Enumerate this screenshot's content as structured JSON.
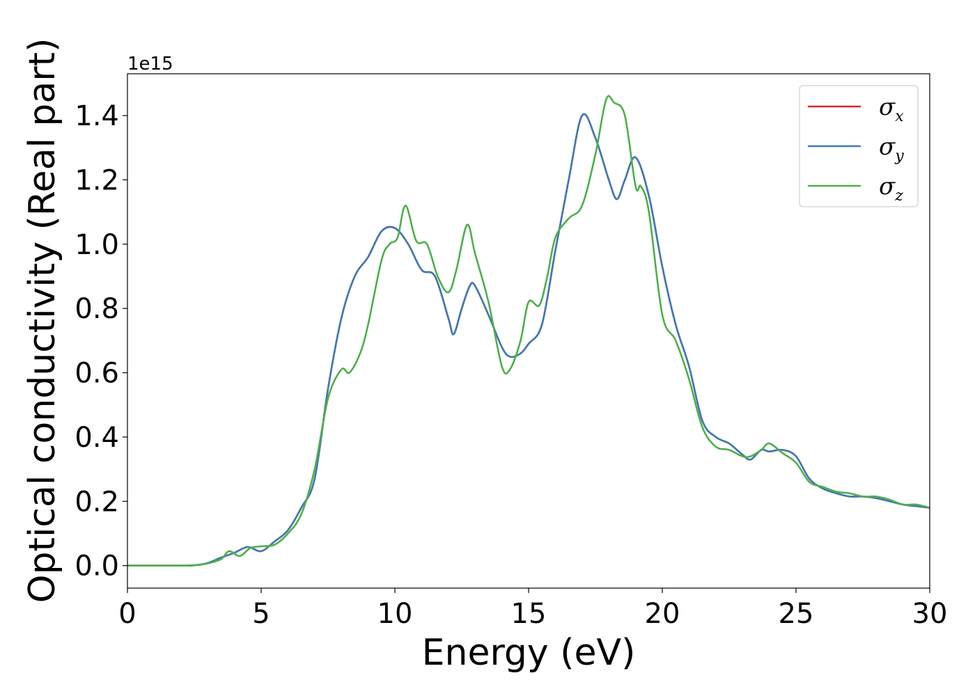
{
  "chart_data": {
    "type": "line",
    "xlabel": "Energy (eV)",
    "ylabel": "Optical conductivity (Real part)",
    "y_offset_label": "1e15",
    "xlim": [
      0,
      30
    ],
    "ylim": [
      -0.07,
      1.53
    ],
    "x_ticks": [
      0,
      5,
      10,
      15,
      20,
      25,
      30
    ],
    "x_tick_labels": [
      "0",
      "5",
      "10",
      "15",
      "20",
      "25",
      "30"
    ],
    "y_ticks": [
      0.0,
      0.2,
      0.4,
      0.6,
      0.8,
      1.0,
      1.2,
      1.4
    ],
    "y_tick_labels": [
      "0.0",
      "0.2",
      "0.4",
      "0.6",
      "0.8",
      "1.0",
      "1.2",
      "1.4"
    ],
    "grid": false,
    "legend_placement": "top-right",
    "series": [
      {
        "name": "σ",
        "name_sub": "x",
        "color": "#d62728",
        "x": [
          0,
          1,
          2,
          2.5,
          3,
          3.5,
          4,
          4.5,
          5,
          5.5,
          6,
          6.5,
          7,
          7.5,
          8,
          8.5,
          9,
          9.5,
          10,
          10.5,
          11,
          11.5,
          12,
          12.2,
          12.5,
          12.8,
          13,
          13.5,
          14,
          14.3,
          14.7,
          15,
          15.5,
          16,
          16.5,
          17,
          17.5,
          18,
          18.3,
          18.6,
          19,
          19.5,
          20,
          20.5,
          21,
          21.5,
          22,
          22.5,
          23,
          23.3,
          23.7,
          24,
          24.5,
          25,
          25.5,
          26,
          26.5,
          27,
          27.5,
          28,
          28.5,
          29,
          29.5,
          30
        ],
        "y": [
          0,
          0,
          0,
          0.001,
          0.008,
          0.025,
          0.04,
          0.058,
          0.045,
          0.075,
          0.11,
          0.18,
          0.27,
          0.55,
          0.77,
          0.9,
          0.96,
          1.04,
          1.05,
          1.0,
          0.92,
          0.9,
          0.77,
          0.72,
          0.8,
          0.87,
          0.87,
          0.78,
          0.68,
          0.65,
          0.66,
          0.69,
          0.75,
          0.98,
          1.2,
          1.4,
          1.33,
          1.2,
          1.14,
          1.2,
          1.27,
          1.15,
          0.93,
          0.75,
          0.62,
          0.45,
          0.4,
          0.38,
          0.345,
          0.33,
          0.36,
          0.355,
          0.36,
          0.34,
          0.27,
          0.24,
          0.225,
          0.215,
          0.215,
          0.21,
          0.2,
          0.19,
          0.185,
          0.18
        ]
      },
      {
        "name": "σ",
        "name_sub": "y",
        "color": "#3f7bb5",
        "x": [
          0,
          1,
          2,
          2.5,
          3,
          3.5,
          4,
          4.5,
          5,
          5.5,
          6,
          6.5,
          7,
          7.5,
          8,
          8.5,
          9,
          9.5,
          10,
          10.5,
          11,
          11.5,
          12,
          12.2,
          12.5,
          12.8,
          13,
          13.5,
          14,
          14.3,
          14.7,
          15,
          15.5,
          16,
          16.5,
          17,
          17.5,
          18,
          18.3,
          18.6,
          19,
          19.5,
          20,
          20.5,
          21,
          21.5,
          22,
          22.5,
          23,
          23.3,
          23.7,
          24,
          24.5,
          25,
          25.5,
          26,
          26.5,
          27,
          27.5,
          28,
          28.5,
          29,
          29.5,
          30
        ],
        "y": [
          0,
          0,
          0,
          0.001,
          0.008,
          0.025,
          0.04,
          0.058,
          0.045,
          0.075,
          0.11,
          0.18,
          0.27,
          0.55,
          0.77,
          0.9,
          0.96,
          1.04,
          1.05,
          1.0,
          0.92,
          0.9,
          0.77,
          0.72,
          0.8,
          0.87,
          0.87,
          0.78,
          0.68,
          0.65,
          0.66,
          0.69,
          0.75,
          0.98,
          1.2,
          1.4,
          1.33,
          1.2,
          1.14,
          1.2,
          1.27,
          1.15,
          0.93,
          0.75,
          0.62,
          0.45,
          0.4,
          0.38,
          0.345,
          0.33,
          0.36,
          0.355,
          0.36,
          0.34,
          0.27,
          0.24,
          0.225,
          0.215,
          0.215,
          0.21,
          0.2,
          0.19,
          0.185,
          0.18
        ]
      },
      {
        "name": "σ",
        "name_sub": "z",
        "color": "#4daf4a",
        "x": [
          0,
          1,
          2,
          2.5,
          3,
          3.5,
          3.8,
          4.2,
          4.6,
          5,
          5.5,
          6,
          6.5,
          7,
          7.5,
          8,
          8.3,
          8.7,
          9,
          9.5,
          9.8,
          10.1,
          10.4,
          10.8,
          11.2,
          11.6,
          12,
          12.3,
          12.7,
          13,
          13.5,
          14,
          14.3,
          14.7,
          15,
          15.4,
          15.7,
          16,
          16.5,
          17,
          17.5,
          17.9,
          18.2,
          18.6,
          19,
          19.2,
          19.5,
          20,
          20.5,
          21,
          21.5,
          22,
          22.5,
          23,
          23.3,
          23.7,
          24,
          24.5,
          25,
          25.5,
          26,
          26.5,
          27,
          27.5,
          28,
          28.5,
          29,
          29.5,
          30
        ],
        "y": [
          0,
          0,
          0,
          0.001,
          0.007,
          0.02,
          0.045,
          0.03,
          0.055,
          0.06,
          0.065,
          0.1,
          0.16,
          0.3,
          0.52,
          0.61,
          0.6,
          0.66,
          0.75,
          0.95,
          1.0,
          1.02,
          1.12,
          1.01,
          1.0,
          0.9,
          0.85,
          0.92,
          1.06,
          0.97,
          0.82,
          0.62,
          0.61,
          0.7,
          0.82,
          0.81,
          0.9,
          1.02,
          1.08,
          1.12,
          1.28,
          1.45,
          1.44,
          1.4,
          1.18,
          1.18,
          1.1,
          0.78,
          0.7,
          0.58,
          0.43,
          0.37,
          0.36,
          0.34,
          0.34,
          0.36,
          0.38,
          0.35,
          0.32,
          0.26,
          0.245,
          0.23,
          0.225,
          0.215,
          0.215,
          0.205,
          0.19,
          0.19,
          0.18
        ]
      }
    ]
  }
}
